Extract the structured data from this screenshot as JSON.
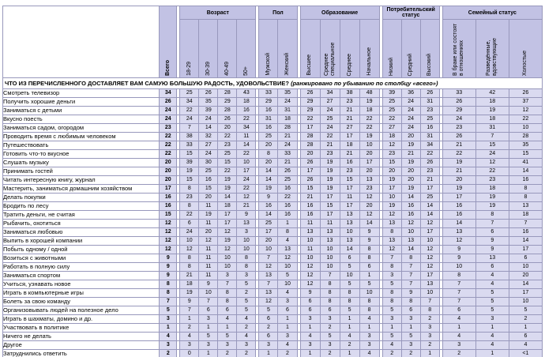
{
  "colors": {
    "header_bg": "#c2c2e4",
    "cell_bg": "#dadaf0",
    "grid_line": "#9898bc",
    "frame": "#3c3c60"
  },
  "table": {
    "question": "ЧТО ИЗ ПЕРЕЧИСЛЕННОГО ДОСТАВЛЯЕТ ВАМ САМУЮ БОЛЬШУЮ РАДОСТЬ, УДОВОЛЬСТВИЕ?",
    "question_note": "(ранжировано по убыванию по столбцу «всего»)",
    "total_label": "Всего",
    "groups": [
      {
        "label": "Возраст",
        "columns": [
          "18-29",
          "30-39",
          "40-49",
          "50+"
        ]
      },
      {
        "label": "Пол",
        "columns": [
          "Мужской",
          "Женский"
        ]
      },
      {
        "label": "Образование",
        "columns": [
          "Высшее",
          "Среднее специальное",
          "Среднее",
          "Начальное"
        ]
      },
      {
        "label": "Потребительский статус",
        "columns": [
          "Низкий",
          "Средний",
          "Высокий"
        ]
      },
      {
        "label": "Семейный статус",
        "columns": [
          "В браке или состоят в отношениях",
          "Разведённые, вдовствующие",
          "Холостые"
        ]
      }
    ],
    "rows": [
      {
        "label": "Смотреть телевизор",
        "total": 34,
        "values": [
          25,
          26,
          28,
          43,
          33,
          35,
          26,
          34,
          38,
          48,
          39,
          36,
          26,
          33,
          42,
          26
        ]
      },
      {
        "label": "Получить хорошие деньги",
        "total": 26,
        "values": [
          34,
          35,
          29,
          18,
          29,
          24,
          29,
          27,
          23,
          19,
          25,
          24,
          31,
          26,
          18,
          37
        ]
      },
      {
        "label": "Заниматься с детьми",
        "total": 24,
        "values": [
          22,
          39,
          28,
          16,
          16,
          31,
          29,
          24,
          21,
          18,
          25,
          24,
          23,
          29,
          19,
          12
        ]
      },
      {
        "label": "Вкусно поесть",
        "total": 24,
        "values": [
          24,
          24,
          26,
          22,
          31,
          18,
          22,
          25,
          21,
          22,
          22,
          24,
          25,
          24,
          18,
          22
        ]
      },
      {
        "label": "Заниматься садом, огородом",
        "total": 23,
        "values": [
          7,
          14,
          20,
          34,
          16,
          28,
          17,
          24,
          27,
          22,
          27,
          24,
          16,
          23,
          31,
          10
        ]
      },
      {
        "label": "Проводить время с любимым человеком",
        "total": 22,
        "values": [
          38,
          32,
          22,
          11,
          25,
          21,
          28,
          22,
          17,
          19,
          18,
          20,
          31,
          26,
          7,
          28
        ]
      },
      {
        "label": "Путешествовать",
        "total": 22,
        "values": [
          33,
          27,
          23,
          14,
          20,
          24,
          28,
          21,
          18,
          10,
          12,
          19,
          34,
          21,
          15,
          35
        ]
      },
      {
        "label": "Готовить что-то вкусное",
        "total": 22,
        "values": [
          15,
          24,
          25,
          22,
          8,
          33,
          20,
          23,
          21,
          20,
          23,
          21,
          22,
          22,
          24,
          15
        ]
      },
      {
        "label": "Слушать музыку",
        "total": 20,
        "values": [
          39,
          30,
          15,
          10,
          20,
          21,
          26,
          19,
          16,
          17,
          15,
          19,
          26,
          19,
          12,
          41
        ]
      },
      {
        "label": "Принимать гостей",
        "total": 20,
        "values": [
          19,
          25,
          22,
          17,
          14,
          26,
          17,
          19,
          23,
          20,
          20,
          20,
          23,
          21,
          22,
          14
        ]
      },
      {
        "label": "Читать интересную книгу, журнал",
        "total": 20,
        "values": [
          15,
          16,
          19,
          24,
          14,
          25,
          26,
          19,
          15,
          13,
          19,
          20,
          21,
          20,
          23,
          16
        ]
      },
      {
        "label": "Мастерить, заниматься домашним хозяйством",
        "total": 17,
        "values": [
          8,
          15,
          19,
          22,
          19,
          16,
          15,
          19,
          17,
          23,
          17,
          19,
          17,
          19,
          18,
          8
        ]
      },
      {
        "label": "Делать покупки",
        "total": 16,
        "values": [
          23,
          20,
          14,
          12,
          9,
          22,
          21,
          17,
          11,
          12,
          10,
          14,
          25,
          17,
          19,
          8
        ]
      },
      {
        "label": "Бродить по лесу",
        "total": 16,
        "values": [
          8,
          11,
          18,
          21,
          16,
          16,
          16,
          15,
          17,
          20,
          19,
          16,
          14,
          16,
          19,
          13
        ]
      },
      {
        "label": "Тратить деньги, не считая",
        "total": 15,
        "values": [
          22,
          19,
          17,
          9,
          14,
          16,
          16,
          17,
          13,
          12,
          12,
          16,
          14,
          16,
          8,
          18
        ]
      },
      {
        "label": "Рыбачить, охотиться",
        "total": 12,
        "values": [
          6,
          11,
          17,
          13,
          25,
          1,
          11,
          11,
          13,
          14,
          13,
          12,
          12,
          14,
          7,
          7
        ]
      },
      {
        "label": "Заниматься любовью",
        "total": 12,
        "values": [
          24,
          20,
          12,
          3,
          17,
          8,
          13,
          13,
          10,
          9,
          8,
          10,
          17,
          13,
          6,
          16
        ]
      },
      {
        "label": "Выпить в хорошей компании",
        "total": 12,
        "values": [
          10,
          12,
          19,
          10,
          20,
          4,
          10,
          13,
          13,
          9,
          13,
          13,
          10,
          12,
          9,
          14
        ]
      },
      {
        "label": "Побыть одному / одной",
        "total": 12,
        "values": [
          12,
          11,
          12,
          10,
          10,
          13,
          11,
          10,
          14,
          8,
          12,
          14,
          12,
          9,
          9,
          17
        ]
      },
      {
        "label": "Возиться с животными",
        "total": 9,
        "values": [
          8,
          11,
          10,
          8,
          7,
          12,
          10,
          10,
          6,
          8,
          7,
          8,
          12,
          9,
          13,
          6
        ]
      },
      {
        "label": "Работать в полную силу",
        "total": 9,
        "values": [
          8,
          11,
          10,
          8,
          12,
          10,
          12,
          10,
          5,
          6,
          8,
          7,
          12,
          10,
          6,
          10
        ]
      },
      {
        "label": "Заниматься спортом",
        "total": 9,
        "values": [
          21,
          11,
          3,
          3,
          13,
          5,
          12,
          7,
          10,
          1,
          3,
          7,
          17,
          8,
          4,
          20
        ]
      },
      {
        "label": "Учиться, узнавать новое",
        "total": 8,
        "values": [
          18,
          9,
          7,
          5,
          7,
          10,
          12,
          8,
          5,
          5,
          5,
          7,
          13,
          7,
          4,
          14
        ]
      },
      {
        "label": "Играть в компьютерные игры",
        "total": 8,
        "values": [
          19,
          10,
          8,
          2,
          13,
          4,
          9,
          8,
          8,
          10,
          8,
          9,
          10,
          7,
          5,
          17
        ]
      },
      {
        "label": "Болеть за свою команду",
        "total": 7,
        "values": [
          9,
          7,
          8,
          5,
          12,
          3,
          6,
          8,
          8,
          8,
          8,
          8,
          7,
          7,
          5,
          10
        ]
      },
      {
        "label": "Организовывать людей на полезное дело",
        "total": 5,
        "values": [
          7,
          6,
          6,
          5,
          5,
          6,
          6,
          6,
          5,
          8,
          5,
          6,
          8,
          6,
          5,
          5
        ]
      },
      {
        "label": "Играть в шахматы, домино и др.",
        "total": 3,
        "values": [
          1,
          3,
          4,
          4,
          6,
          1,
          3,
          3,
          1,
          4,
          3,
          3,
          2,
          4,
          3,
          2
        ]
      },
      {
        "label": "Участвовать в политике",
        "total": 1,
        "values": [
          2,
          1,
          1,
          2,
          2,
          1,
          1,
          2,
          1,
          1,
          1,
          1,
          3,
          1,
          1,
          1
        ]
      },
      {
        "label": "Ничего не делать",
        "total": 4,
        "values": [
          4,
          5,
          5,
          4,
          6,
          3,
          4,
          5,
          4,
          3,
          5,
          5,
          3,
          4,
          4,
          6
        ]
      },
      {
        "label": "Другое",
        "total": 3,
        "values": [
          3,
          3,
          3,
          3,
          3,
          4,
          3,
          3,
          2,
          3,
          4,
          3,
          2,
          3,
          4,
          4
        ]
      },
      {
        "label": "Затруднились ответить",
        "total": 2,
        "values": [
          0,
          1,
          2,
          2,
          1,
          2,
          1,
          2,
          1,
          4,
          2,
          2,
          1,
          2,
          1,
          "<1"
        ]
      }
    ]
  }
}
